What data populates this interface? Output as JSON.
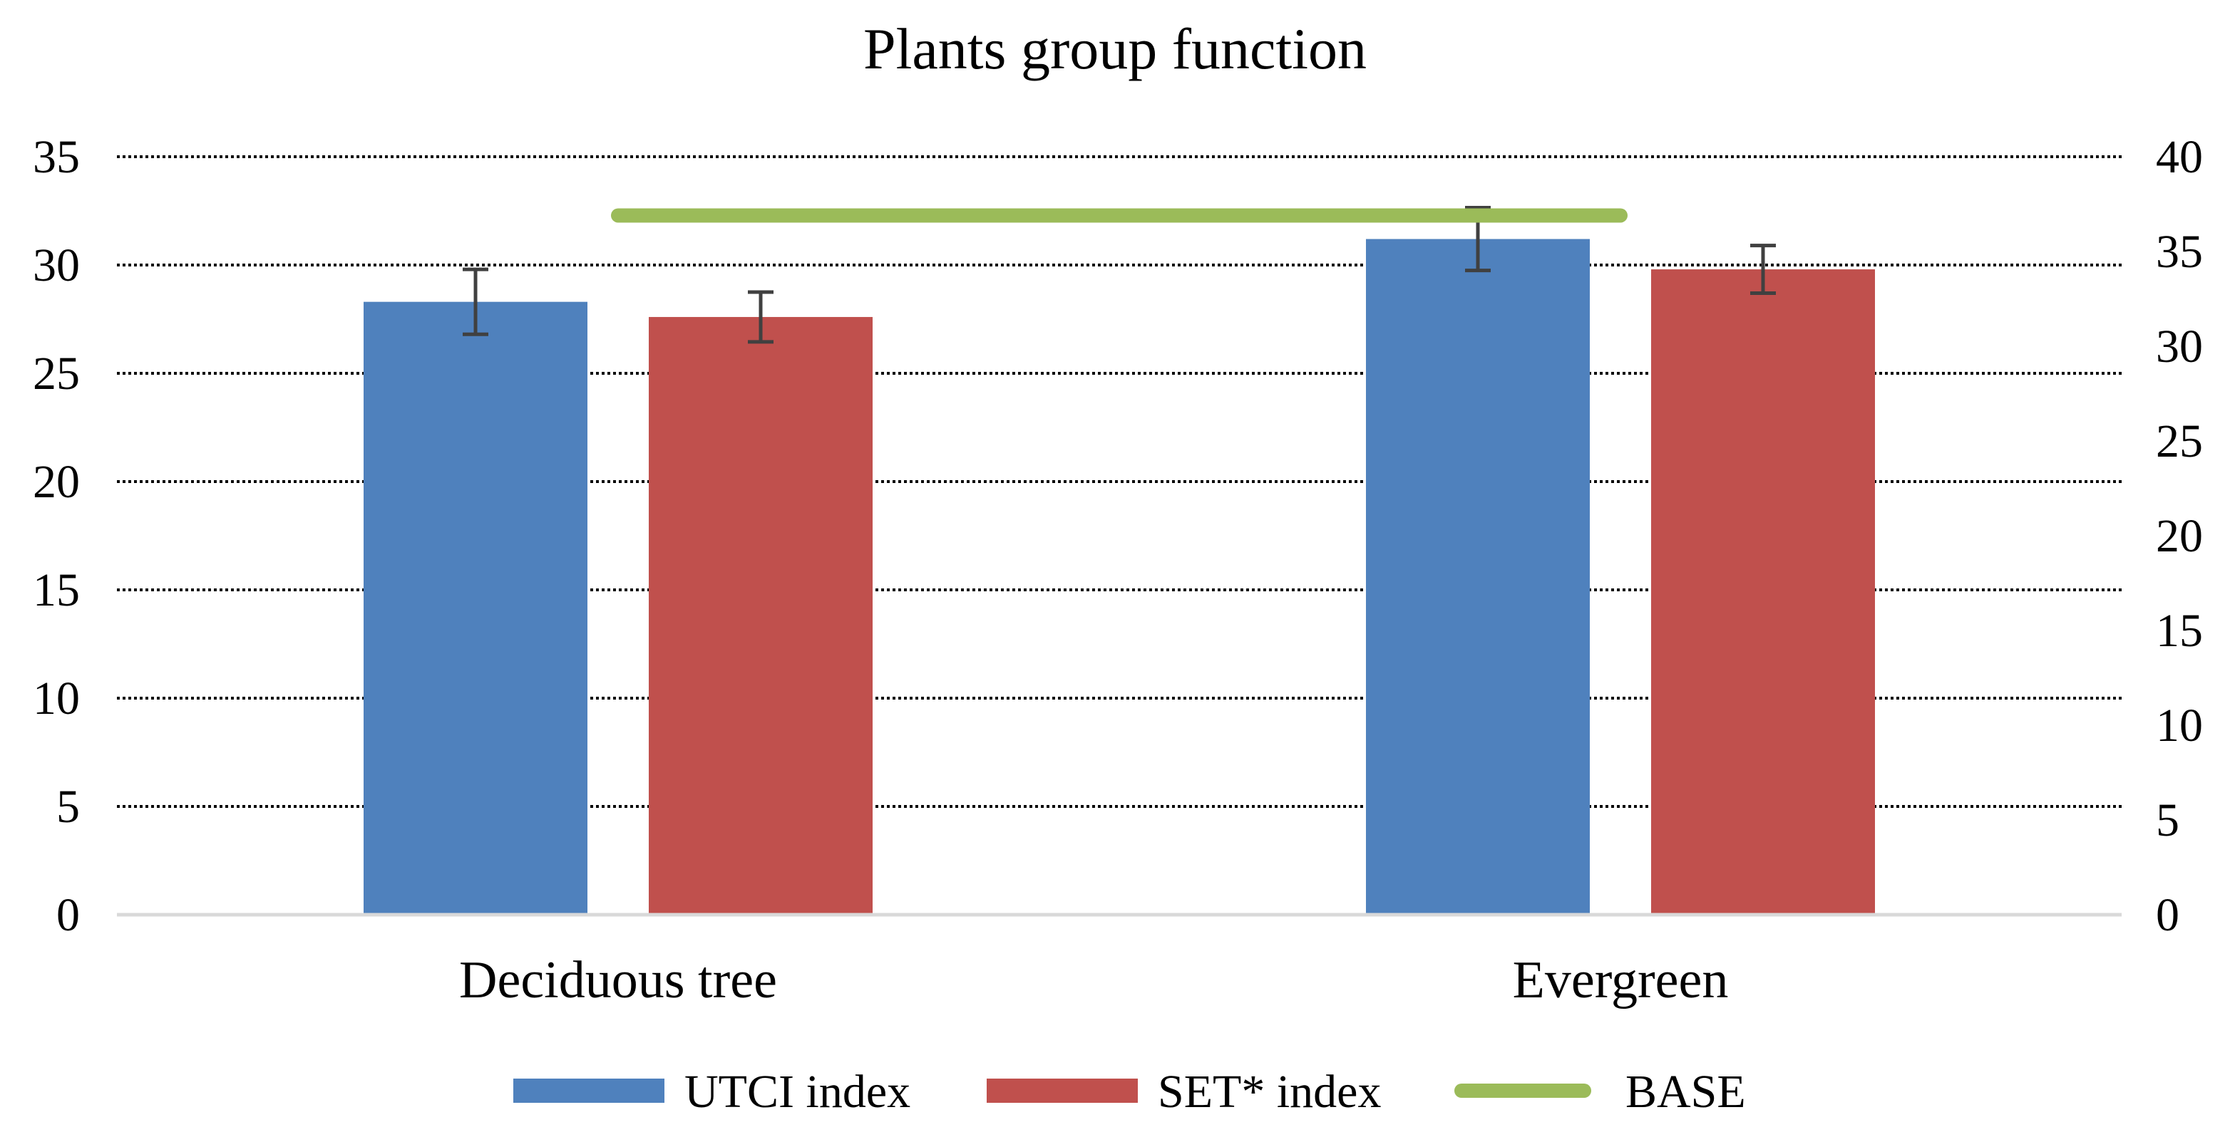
{
  "chart_data": {
    "type": "bar",
    "title": "Plants group function",
    "xlabel": "",
    "ylabel": "",
    "categories": [
      "Deciduous tree",
      "Evergreen"
    ],
    "series": [
      {
        "name": "UTCI index",
        "type": "bar",
        "color": "#4F81BD",
        "values": [
          28.3,
          31.2
        ],
        "error": [
          1.5,
          1.45
        ],
        "secondary_axis": false
      },
      {
        "name": "SET* index",
        "type": "bar",
        "color": "#C0504D",
        "values": [
          27.6,
          29.8
        ],
        "error": [
          1.15,
          1.1
        ],
        "secondary_axis": false
      },
      {
        "name": "BASE",
        "type": "line",
        "color": "#9BBB59",
        "values": [
          36.9,
          36.9
        ],
        "secondary_axis": true
      }
    ],
    "ylim": [
      0,
      35
    ],
    "yticks": [
      0,
      5,
      10,
      15,
      20,
      25,
      30,
      35
    ],
    "y2lim": [
      0,
      40
    ],
    "y2ticks": [
      0,
      5,
      10,
      15,
      20,
      25,
      30,
      35,
      40
    ],
    "grid": true,
    "legend": "bottom",
    "grid_color": "#000000",
    "baseline_color": "#D9D9D9",
    "error_bar_color": "#404040"
  }
}
